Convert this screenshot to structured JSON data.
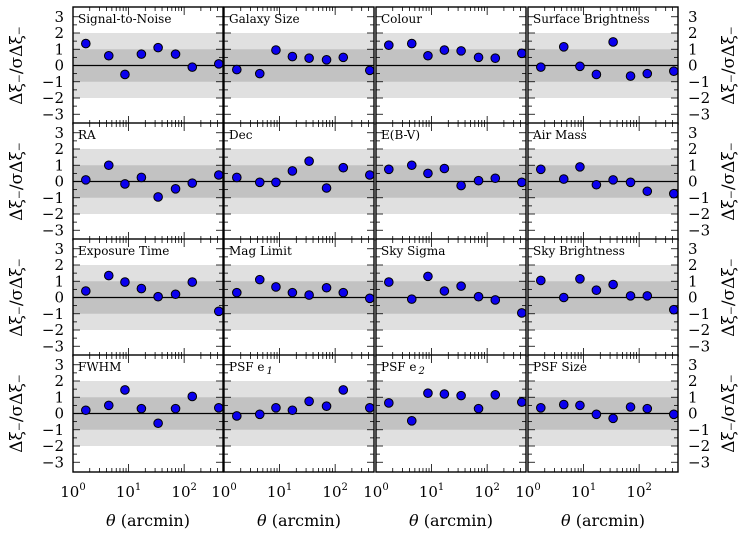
{
  "chart_data": {
    "type": "scatter",
    "figure_layout": "4x4 grid of panels",
    "x_scale": "log",
    "xlim": [
      1,
      500
    ],
    "ylim": [
      -3.6,
      3.6
    ],
    "yticks": [
      -3,
      -2,
      -1,
      0,
      1,
      2,
      3
    ],
    "xtick_labels": [
      {
        "base": "10",
        "exp": "0"
      },
      {
        "base": "10",
        "exp": "1"
      },
      {
        "base": "10",
        "exp": "2"
      }
    ],
    "xlabel_prefix": "θ",
    "xlabel_suffix": " (arcmin)",
    "ylabel": "Δξ₋/σΔξ₋",
    "bands": [
      {
        "name": "2-sigma",
        "range": [
          -2,
          2
        ],
        "color": "#e0e0e0"
      },
      {
        "name": "1-sigma",
        "range": [
          -1,
          1
        ],
        "color": "#c2c2c2"
      }
    ],
    "zero_line": 0,
    "marker_color": "#0b00ee",
    "marker_edge": "#000000",
    "x": [
      1.7,
      4.4,
      8.6,
      17,
      34,
      70,
      140,
      420
    ],
    "panels": [
      {
        "title": "Signal-to-Noise",
        "values": [
          1.35,
          0.6,
          -0.55,
          0.7,
          1.1,
          0.7,
          -0.1,
          0.1
        ]
      },
      {
        "title": "Galaxy Size",
        "values": [
          -0.25,
          -0.5,
          0.95,
          0.55,
          0.45,
          0.35,
          0.5,
          -0.3
        ]
      },
      {
        "title": "Colour",
        "values": [
          1.25,
          1.35,
          0.6,
          0.95,
          0.9,
          0.5,
          0.45,
          0.75
        ]
      },
      {
        "title": "Surface Brightness",
        "values": [
          -0.1,
          1.15,
          -0.05,
          -0.55,
          1.45,
          -0.65,
          -0.5,
          -0.35
        ]
      },
      {
        "title": "RA",
        "values": [
          0.1,
          1.0,
          -0.15,
          0.25,
          -0.95,
          -0.45,
          -0.1,
          0.4
        ]
      },
      {
        "title": "Dec",
        "values": [
          0.25,
          -0.05,
          -0.05,
          0.65,
          1.25,
          -0.4,
          0.85,
          0.4
        ]
      },
      {
        "title": "E(B-V)",
        "values": [
          0.75,
          1.0,
          0.5,
          0.8,
          -0.25,
          0.05,
          0.2,
          -0.05
        ]
      },
      {
        "title": "Air Mass",
        "values": [
          0.75,
          0.15,
          0.9,
          -0.2,
          0.1,
          -0.05,
          -0.6,
          -0.75
        ]
      },
      {
        "title": "Exposure Time",
        "values": [
          0.4,
          1.35,
          0.95,
          0.55,
          0.05,
          0.2,
          0.95,
          -0.85
        ]
      },
      {
        "title": "Mag Limit",
        "values": [
          0.3,
          1.1,
          0.65,
          0.3,
          0.15,
          0.6,
          0.3,
          -0.05
        ]
      },
      {
        "title": "Sky Sigma",
        "values": [
          0.95,
          -0.1,
          1.3,
          0.4,
          0.7,
          0.05,
          -0.15,
          -0.95
        ]
      },
      {
        "title": "Sky Brightness",
        "values": [
          1.05,
          0.0,
          1.15,
          0.45,
          0.8,
          0.1,
          0.1,
          -0.75
        ]
      },
      {
        "title": "FWHM",
        "values": [
          0.2,
          0.5,
          1.45,
          0.3,
          -0.6,
          0.3,
          1.05,
          0.35
        ]
      },
      {
        "title": "PSF e",
        "title_sub": "1",
        "values": [
          -0.15,
          -0.05,
          0.35,
          0.2,
          0.75,
          0.45,
          1.45,
          0.35
        ]
      },
      {
        "title": "PSF e",
        "title_sub": "2",
        "values": [
          0.65,
          -0.45,
          1.25,
          1.2,
          1.1,
          0.3,
          1.15,
          0.7
        ]
      },
      {
        "title": "PSF Size",
        "values": [
          0.35,
          0.55,
          0.5,
          -0.05,
          -0.3,
          0.4,
          0.3,
          -0.05
        ]
      }
    ]
  }
}
